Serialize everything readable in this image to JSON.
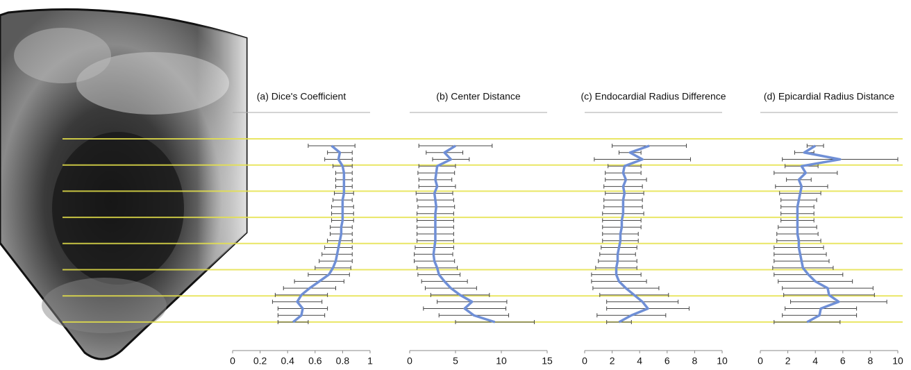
{
  "chart_data": [
    {
      "type": "line",
      "title": "(a) Dice's Coefficient",
      "categories": [
        null,
        null,
        null,
        null,
        null,
        null,
        null,
        null,
        null,
        null,
        null,
        null,
        null,
        null,
        null,
        null,
        null,
        null,
        null,
        null,
        null,
        null,
        null,
        null,
        null,
        null,
        null
      ],
      "series": [
        {
          "color": "#6f8fd6",
          "values": [
            0.72,
            0.78,
            0.77,
            0.8,
            0.81,
            0.81,
            0.81,
            0.81,
            0.8,
            0.8,
            0.8,
            0.8,
            0.79,
            0.79,
            0.78,
            0.77,
            0.76,
            0.75,
            0.73,
            0.7,
            0.63,
            0.56,
            0.5,
            0.47,
            0.51,
            0.5,
            0.44
          ],
          "errors": [
            0.17,
            0.09,
            0.1,
            0.07,
            0.06,
            0.06,
            0.06,
            0.07,
            0.07,
            0.08,
            0.08,
            0.08,
            0.08,
            0.08,
            0.09,
            0.1,
            0.11,
            0.12,
            0.13,
            0.15,
            0.18,
            0.19,
            0.19,
            0.18,
            0.18,
            0.17,
            0.11
          ]
        }
      ],
      "xlim": [
        0,
        1
      ],
      "xticks": [
        0,
        0.2,
        0.4,
        0.6,
        0.8,
        1
      ]
    },
    {
      "type": "line",
      "title": "(b) Center Distance",
      "categories": [
        null,
        null,
        null,
        null,
        null,
        null,
        null,
        null,
        null,
        null,
        null,
        null,
        null,
        null,
        null,
        null,
        null,
        null,
        null,
        null,
        null,
        null,
        null,
        null,
        null,
        null,
        null
      ],
      "series": [
        {
          "color": "#6f8fd6",
          "values": [
            5.0,
            3.8,
            4.5,
            3.0,
            2.9,
            2.8,
            3.0,
            2.7,
            2.8,
            2.9,
            2.8,
            2.8,
            2.8,
            2.8,
            2.8,
            2.7,
            2.6,
            2.7,
            3.0,
            3.2,
            3.8,
            4.5,
            5.5,
            6.8,
            6.0,
            7.0,
            9.3
          ],
          "errors": [
            4.0,
            2.0,
            2.0,
            2.0,
            2.0,
            1.8,
            2.0,
            2.0,
            2.0,
            2.0,
            2.0,
            2.0,
            2.0,
            2.0,
            2.0,
            2.1,
            2.1,
            2.2,
            2.2,
            2.3,
            2.5,
            2.8,
            3.2,
            3.8,
            4.5,
            3.8,
            4.3
          ]
        }
      ],
      "xlim": [
        0,
        15
      ],
      "xticks": [
        0,
        5,
        10,
        15
      ]
    },
    {
      "type": "line",
      "title": "(c) Endocardial Radius Difference",
      "categories": [
        null,
        null,
        null,
        null,
        null,
        null,
        null,
        null,
        null,
        null,
        null,
        null,
        null,
        null,
        null,
        null,
        null,
        null,
        null,
        null,
        null,
        null,
        null,
        null,
        null,
        null,
        null
      ],
      "series": [
        {
          "color": "#6f8fd6",
          "values": [
            4.7,
            3.3,
            4.2,
            2.9,
            2.8,
            3.0,
            2.8,
            2.9,
            2.8,
            2.8,
            2.8,
            2.7,
            2.7,
            2.6,
            2.6,
            2.5,
            2.4,
            2.4,
            2.3,
            2.3,
            2.5,
            3.0,
            3.6,
            4.2,
            4.6,
            3.4,
            2.5
          ],
          "errors": [
            2.7,
            0.8,
            3.5,
            1.2,
            1.3,
            1.5,
            1.4,
            1.4,
            1.4,
            1.4,
            1.5,
            1.4,
            1.4,
            1.3,
            1.3,
            1.3,
            1.3,
            1.4,
            1.5,
            1.8,
            2.0,
            2.4,
            2.5,
            2.6,
            3.0,
            2.5,
            0.9
          ]
        }
      ],
      "xlim": [
        0,
        10
      ],
      "xticks": [
        0,
        2,
        4,
        6,
        8,
        10
      ]
    },
    {
      "type": "line",
      "title": "(d) Epicardial Radius Distance",
      "categories": [
        null,
        null,
        null,
        null,
        null,
        null,
        null,
        null,
        null,
        null,
        null,
        null,
        null,
        null,
        null,
        null,
        null,
        null,
        null,
        null,
        null,
        null,
        null,
        null,
        null,
        null,
        null
      ],
      "series": [
        {
          "color": "#6f8fd6",
          "values": [
            4.0,
            3.2,
            5.8,
            3.0,
            3.3,
            2.8,
            3.0,
            2.9,
            2.8,
            2.7,
            2.7,
            2.7,
            2.7,
            2.7,
            2.8,
            2.8,
            2.9,
            3.0,
            3.1,
            3.5,
            4.0,
            4.9,
            5.0,
            5.7,
            4.4,
            4.3,
            3.4
          ],
          "errors": [
            0.6,
            0.7,
            4.2,
            1.2,
            2.3,
            0.9,
            1.9,
            1.5,
            1.3,
            1.2,
            1.2,
            1.2,
            1.4,
            1.5,
            1.6,
            1.8,
            1.9,
            2.0,
            2.2,
            2.5,
            2.7,
            3.3,
            3.3,
            3.5,
            2.6,
            2.7,
            2.4
          ]
        }
      ],
      "xlim": [
        0,
        10
      ],
      "xticks": [
        0,
        2,
        4,
        6,
        8,
        10
      ]
    }
  ]
}
